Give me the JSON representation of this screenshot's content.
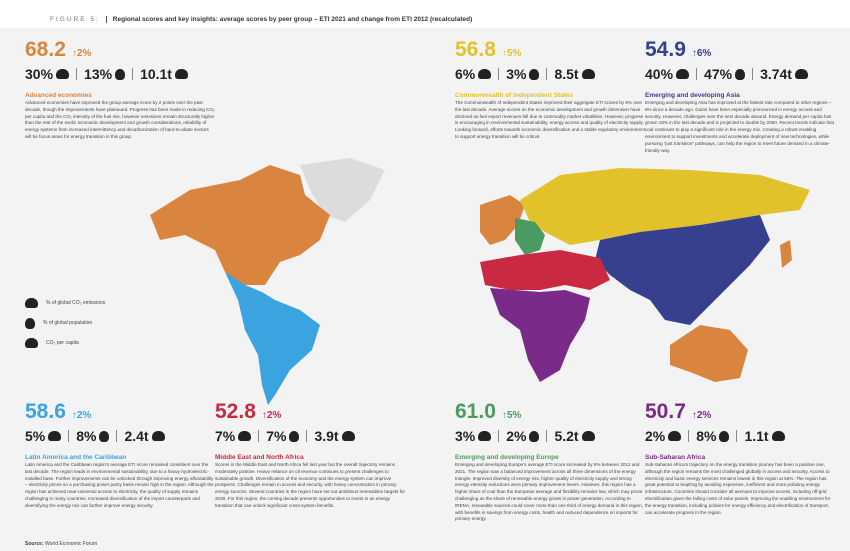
{
  "header": {
    "figure": "FIGURE 5:",
    "title": "Regional scores and key insights: average scores by peer group – ETI 2021 and change from ETI 2012 (recalculated)"
  },
  "colors": {
    "advanced": "#d9843f",
    "cis": "#e2c22b",
    "asia": "#37408f",
    "latam": "#3ba4e0",
    "mena": "#c92a42",
    "europe": "#4a9b61",
    "ssa": "#7a2a89",
    "other": "#dcdcdc"
  },
  "regions": [
    {
      "score": "68.2",
      "change": "↑2%",
      "co2": "30%",
      "pop": "13%",
      "capita": "10.1t",
      "title": "Advanced economies",
      "body": "Advanced economies have improved the group average score by 2 points over the past decade, though the improvements have plateaued. Progress has been made in reducing CO₂ per capita and the CO₂ intensity of the fuel mix, however emissions remain structurally higher than the rest of the world. Economic development and growth considerations, reliability of energy systems from increased intermittency and decarbonization of hard-to-abate sectors will be focus areas for energy transition in this group."
    },
    {
      "score": "56.8",
      "change": "↑5%",
      "co2": "6%",
      "pop": "3%",
      "capita": "8.5t",
      "title": "Commonwealth of Independent States",
      "body": "The Commonwealth of Independent States improved their aggregate ETI scores by 5% over the last decade. Average scores on the economic development and growth dimension have declined as fuel export revenues fell due to commodity market volatilities. However, progress is encouraging in environmental sustainability, energy access and quality of electricity supply. Looking forward, efforts towards economic diversification and a stable regulatory environment to support energy transition will be critical."
    },
    {
      "score": "54.9",
      "change": "↑6%",
      "co2": "40%",
      "pop": "47%",
      "capita": "3.74t",
      "title": "Emerging and developing Asia",
      "body": "Emerging and developing Asia has improved at the fastest rate compared to other regions – 6% since a decade ago. Gains have been especially pronounced in energy access and security. However, challenges over the next decade abound. Energy demand per capita has grown 18% in the last decade and is projected to double by 2050. Recent trends indicate that coal continues to play a significant role in the energy mix. Creating a robust enabling environment to support investments and accelerate deployment of new technologies, while pursuing “just transition” pathways, can help the region to meet future demand in a climate-friendly way."
    },
    {
      "score": "58.6",
      "change": "↑2%",
      "co2": "5%",
      "pop": "8%",
      "capita": "2.4t",
      "title": "Latin America and the Caribbean",
      "body": "Latin America and the Caribbean region's average ETI score remained consistent over the last decade. The region leads in environmental sustainability, due to a heavy hydroelectric-installed base. Further improvements can be unlocked through improving energy affordability – electricity prices on a purchasing power parity basis remain high in the region. Although the region has achieved near-universal access to electricity, the quality of supply remains challenging in many countries. Increased diversification of the import counterparts and diversifying the energy mix can further improve energy security."
    },
    {
      "score": "52.8",
      "change": "↑2%",
      "co2": "7%",
      "pop": "7%",
      "capita": "3.9t",
      "title": "Middle East and North Africa",
      "body": "Scores in the Middle East and North Africa fell last year but the overall trajectory remains moderately positive. Heavy reliance on oil revenue continues to present challenges to sustainable growth. Diversification of the economy and the energy system can improve prospects. Challenges remain in access and security, with heavy concentration in primary energy sources. Several countries in the region have set out ambitious renewables targets for 2030. For this region, the coming decade presents opportunities to invest in an energy transition that can unlock significant cross-system benefits."
    },
    {
      "score": "61.0",
      "change": "↑5%",
      "co2": "3%",
      "pop": "2%",
      "capita": "5.2t",
      "title": "Emerging and developing Europe",
      "body": "Emerging and developing Europe's average ETI score increased by 5% between 2012 and 2021. The region saw a balanced improvement across all three dimensions of the energy triangle. Improved diversity of energy mix, higher quality of electricity supply and strong energy intensity reductions were primary improvement levers. However, this region has a higher share of coal than the European average and flexibility remains low, which may prove challenging as the share of renewable energy grows in power generation. According to IRENA, renewable sources could cover more than one third of energy demand in this region, with benefits in savings from energy costs, health and reduced dependence on imports for primary energy."
    },
    {
      "score": "50.7",
      "change": "↑2%",
      "co2": "2%",
      "pop": "8%",
      "capita": "1.1t",
      "title": "Sub-Saharan Africa",
      "body": "Sub-Saharan Africa's trajectory on the energy transition journey has been a positive one, although the region remains the most challenged globally in access and security. Access to electricity and basic energy services remains lowest in this region at 56%. The region has great potential to leapfrog by avoiding expensive, inefficient and more polluting energy infrastructure. Countries should consider all avenues to improve access, including off-grid electrification given the falling costs of solar panels. Improving the enabling environment for the energy transition, including policies for energy efficiency and electrification of transport, can accelerate progress in the region."
    }
  ],
  "legend": {
    "co2": "% of global CO₂ emissions",
    "pop": "% of global population",
    "capita": "CO₂ per capita"
  },
  "source": {
    "label": "Source:",
    "text": "World Economic Forum"
  }
}
